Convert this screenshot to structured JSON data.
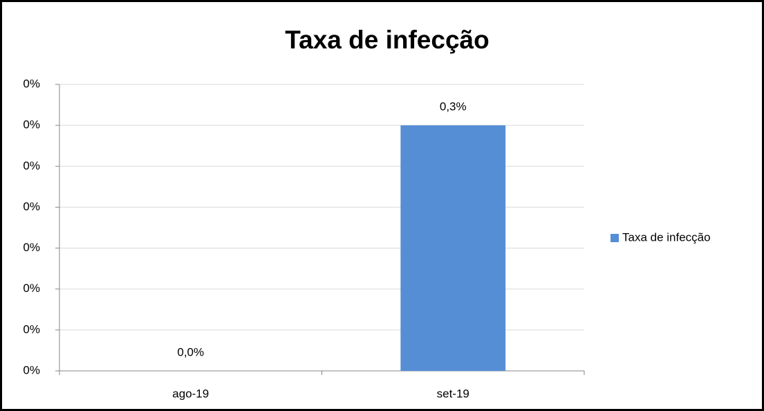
{
  "chart_data": {
    "type": "bar",
    "title": "Taxa de infecção",
    "categories": [
      "ago-19",
      "set-19"
    ],
    "series": [
      {
        "name": "Taxa de infecção",
        "color": "#558ed5",
        "values": [
          0,
          0.3
        ],
        "value_labels": [
          "0,0%",
          "0,3%"
        ]
      }
    ],
    "ylim": [
      0,
      0.35
    ],
    "yticks": [
      {
        "value": 0,
        "label": "0%"
      },
      {
        "value": 0.05,
        "label": "0%"
      },
      {
        "value": 0.1,
        "label": "0%"
      },
      {
        "value": 0.15,
        "label": "0%"
      },
      {
        "value": 0.2,
        "label": "0%"
      },
      {
        "value": 0.25,
        "label": "0%"
      },
      {
        "value": 0.3,
        "label": "0%"
      },
      {
        "value": 0.35,
        "label": "0%"
      }
    ],
    "grid": true,
    "legend": "right"
  }
}
